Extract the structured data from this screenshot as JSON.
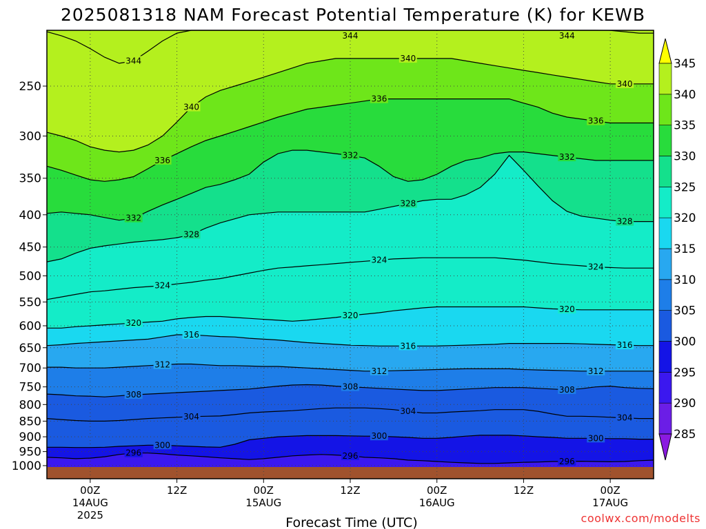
{
  "chart_data": {
    "type": "heatmap",
    "title": "2025081318 NAM Forecast Potential Temperature (K) for KEWB",
    "xlabel": "Forecast Time (UTC)",
    "ylabel": "",
    "credit": "coolwx.com/modelts",
    "y_ticks": [
      250,
      300,
      350,
      400,
      450,
      500,
      550,
      600,
      650,
      700,
      750,
      800,
      850,
      900,
      950,
      1000
    ],
    "ylim": [
      1000,
      200
    ],
    "x_ticks": [
      {
        "h": 6,
        "label": "00Z",
        "date": "14AUG",
        "year": "2025"
      },
      {
        "h": 18,
        "label": "12Z",
        "date": "",
        "year": ""
      },
      {
        "h": 30,
        "label": "00Z",
        "date": "15AUG",
        "year": ""
      },
      {
        "h": 42,
        "label": "12Z",
        "date": "",
        "year": ""
      },
      {
        "h": 54,
        "label": "00Z",
        "date": "16AUG",
        "year": ""
      },
      {
        "h": 66,
        "label": "12Z",
        "date": "",
        "year": ""
      },
      {
        "h": 78,
        "label": "00Z",
        "date": "17AUG",
        "year": ""
      }
    ],
    "xlim": [
      0,
      84
    ],
    "colorbar": {
      "levels": [
        285,
        290,
        295,
        300,
        305,
        310,
        315,
        320,
        325,
        330,
        335,
        340,
        345
      ],
      "colors": [
        "#8a1ae0",
        "#6b1ee6",
        "#3b18ef",
        "#1414e6",
        "#1a5ae0",
        "#1e7ee8",
        "#28a8f0",
        "#1ad8f0",
        "#14ecc8",
        "#14e08c",
        "#28dc3c",
        "#6ee61a",
        "#b4f01e",
        "#f0f014",
        "#ffff00"
      ]
    },
    "isentropes": [
      {
        "theta": 296,
        "p": [
          970,
          972,
          975,
          973,
          968,
          960,
          955,
          955,
          958,
          962,
          965,
          968,
          972,
          975,
          978,
          975,
          970,
          965,
          962,
          960,
          962,
          965,
          970,
          972,
          975,
          980,
          982,
          985,
          988,
          990,
          992,
          992,
          990,
          988,
          987,
          985,
          985,
          984,
          985,
          986,
          985,
          982,
          980
        ]
      },
      {
        "theta": 300,
        "p": [
          935,
          935,
          936,
          936,
          935,
          932,
          930,
          928,
          928,
          930,
          932,
          934,
          935,
          925,
          910,
          905,
          900,
          898,
          896,
          896,
          896,
          897,
          898,
          898,
          900,
          902,
          905,
          905,
          902,
          898,
          895,
          895,
          895,
          897,
          900,
          902,
          905,
          905,
          905,
          906,
          906,
          908,
          908
        ]
      },
      {
        "theta": 304,
        "p": [
          842,
          845,
          848,
          850,
          850,
          848,
          845,
          842,
          840,
          838,
          836,
          835,
          834,
          830,
          825,
          822,
          820,
          818,
          815,
          812,
          810,
          810,
          810,
          812,
          815,
          820,
          825,
          825,
          822,
          820,
          818,
          815,
          815,
          815,
          820,
          828,
          835,
          835,
          836,
          838,
          840,
          842,
          842
        ]
      },
      {
        "theta": 308,
        "p": [
          770,
          772,
          775,
          776,
          778,
          775,
          772,
          770,
          768,
          766,
          764,
          762,
          760,
          758,
          756,
          752,
          748,
          745,
          744,
          745,
          748,
          750,
          752,
          754,
          756,
          758,
          760,
          760,
          758,
          756,
          754,
          752,
          752,
          752,
          754,
          756,
          758,
          755,
          750,
          748,
          752,
          754,
          755
        ]
      },
      {
        "theta": 312,
        "p": [
          698,
          698,
          700,
          700,
          700,
          698,
          696,
          694,
          692,
          690,
          690,
          692,
          694,
          694,
          695,
          696,
          696,
          698,
          700,
          702,
          704,
          706,
          708,
          708,
          707,
          706,
          705,
          704,
          703,
          702,
          702,
          702,
          702,
          704,
          705,
          706,
          707,
          708,
          708,
          708,
          708,
          708,
          708
        ]
      },
      {
        "theta": 316,
        "p": [
          645,
          643,
          640,
          638,
          636,
          634,
          632,
          630,
          625,
          620,
          620,
          622,
          624,
          625,
          628,
          630,
          632,
          635,
          638,
          640,
          642,
          644,
          645,
          646,
          646,
          646,
          646,
          646,
          645,
          644,
          643,
          642,
          640,
          640,
          640,
          640,
          640,
          641,
          642,
          643,
          644,
          645,
          645
        ]
      },
      {
        "theta": 320,
        "p": [
          605,
          605,
          602,
          600,
          598,
          596,
          594,
          592,
          590,
          585,
          582,
          580,
          580,
          582,
          584,
          586,
          588,
          590,
          588,
          585,
          582,
          578,
          575,
          572,
          568,
          565,
          562,
          560,
          560,
          560,
          560,
          560,
          560,
          560,
          562,
          564,
          565,
          566,
          566,
          566,
          566,
          566,
          566
        ]
      },
      {
        "theta": 324,
        "p": [
          545,
          540,
          535,
          530,
          528,
          525,
          522,
          520,
          518,
          515,
          512,
          508,
          505,
          500,
          495,
          490,
          486,
          484,
          482,
          480,
          478,
          476,
          474,
          472,
          470,
          469,
          468,
          468,
          468,
          468,
          468,
          468,
          470,
          472,
          475,
          478,
          480,
          482,
          484,
          485,
          486,
          486,
          486
        ]
      },
      {
        "theta": 328,
        "p": [
          475,
          470,
          460,
          452,
          448,
          445,
          442,
          440,
          438,
          435,
          430,
          420,
          412,
          406,
          400,
          398,
          396,
          396,
          396,
          396,
          396,
          396,
          396,
          392,
          388,
          384,
          380,
          378,
          378,
          372,
          362,
          345,
          322,
          340,
          360,
          380,
          395,
          402,
          405,
          408,
          410,
          410,
          410
        ]
      },
      {
        "theta": 332,
        "p": [
          398,
          396,
          398,
          400,
          404,
          408,
          405,
          395,
          386,
          378,
          370,
          362,
          358,
          352,
          345,
          330,
          320,
          316,
          316,
          318,
          320,
          322,
          325,
          335,
          348,
          354,
          352,
          345,
          335,
          328,
          325,
          320,
          318,
          318,
          320,
          322,
          324,
          326,
          328,
          328,
          328,
          328,
          328
        ]
      },
      {
        "theta": 336,
        "p": [
          335,
          340,
          346,
          352,
          354,
          352,
          348,
          338,
          328,
          320,
          312,
          305,
          300,
          295,
          290,
          285,
          280,
          276,
          272,
          270,
          268,
          266,
          264,
          262,
          262,
          262,
          262,
          262,
          262,
          262,
          262,
          262,
          262,
          266,
          270,
          276,
          280,
          282,
          284,
          286,
          286,
          286,
          286
        ]
      },
      {
        "theta": 340,
        "p": [
          296,
          300,
          305,
          312,
          316,
          318,
          316,
          310,
          300,
          285,
          270,
          260,
          254,
          250,
          246,
          242,
          238,
          234,
          230,
          228,
          226,
          226,
          226,
          226,
          226,
          226,
          226,
          226,
          226,
          228,
          230,
          232,
          234,
          236,
          238,
          240,
          242,
          244,
          246,
          248,
          248,
          248,
          248
        ]
      },
      {
        "theta": 344,
        "p": [
          205,
          208,
          212,
          218,
          225,
          230,
          228,
          220,
          212,
          206,
          200,
          198,
          196,
          196,
          196,
          196,
          196,
          198,
          200,
          200,
          200,
          200,
          200,
          200,
          200,
          200,
          200,
          200,
          200,
          200,
          200,
          198,
          196,
          194,
          194,
          196,
          198,
          200,
          202,
          204,
          205,
          206,
          206
        ]
      }
    ]
  }
}
